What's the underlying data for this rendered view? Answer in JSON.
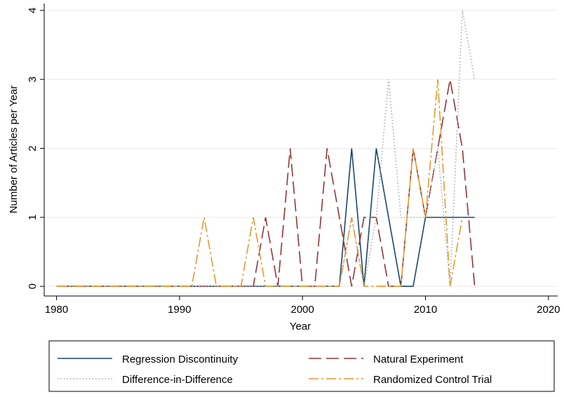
{
  "chart_data": {
    "type": "line",
    "x_label": "Year",
    "y_label": "Number of Articles per Year",
    "x": [
      1980,
      1981,
      1982,
      1983,
      1984,
      1985,
      1986,
      1987,
      1988,
      1989,
      1990,
      1991,
      1992,
      1993,
      1994,
      1995,
      1996,
      1997,
      1998,
      1999,
      2000,
      2001,
      2002,
      2003,
      2004,
      2005,
      2006,
      2007,
      2008,
      2009,
      2010,
      2011,
      2012,
      2013,
      2014
    ],
    "series": [
      {
        "name": "Regression Discontinuity",
        "color": "#1a476f",
        "dash": "none",
        "values": [
          0,
          0,
          0,
          0,
          0,
          0,
          0,
          0,
          0,
          0,
          0,
          0,
          0,
          0,
          0,
          0,
          0,
          0,
          0,
          0,
          0,
          0,
          0,
          0,
          2,
          0,
          2,
          1,
          0,
          0,
          1,
          1,
          1,
          1,
          1
        ]
      },
      {
        "name": "Natural Experiment",
        "color": "#90353b",
        "dash": "18 7",
        "values": [
          0,
          0,
          0,
          0,
          0,
          0,
          0,
          0,
          0,
          0,
          0,
          0,
          0,
          0,
          0,
          0,
          0,
          1,
          0,
          2,
          0,
          0,
          2,
          1,
          0,
          1,
          1,
          0,
          0,
          2,
          1,
          2,
          3,
          2,
          0
        ]
      },
      {
        "name": "Difference-in-Difference",
        "color": "#a8a8a8",
        "dash": "1.5 3",
        "values": [
          0,
          0,
          0,
          0,
          0,
          0,
          0,
          0,
          0,
          0,
          0,
          0,
          0,
          0,
          0,
          0,
          0,
          0,
          0,
          0,
          0,
          0,
          0,
          0,
          1,
          0,
          1,
          3,
          1,
          1,
          1,
          2,
          0,
          4,
          3
        ]
      },
      {
        "name": "Randomized Control Trial",
        "color": "#e39a2c",
        "dash": "14 4 3 4",
        "values": [
          0,
          0,
          0,
          0,
          0,
          0,
          0,
          0,
          0,
          0,
          0,
          0,
          1,
          0,
          0,
          0,
          1,
          0,
          0,
          0,
          0,
          0,
          0,
          0,
          1,
          0,
          0,
          0,
          0,
          2,
          1,
          3,
          0,
          1,
          null
        ]
      }
    ],
    "xlim": [
      1979,
      2020.75
    ],
    "xticks": [
      1980,
      1990,
      2000,
      2010,
      2020
    ],
    "ylim": [
      -0.14,
      4.1
    ],
    "yticks": [
      0,
      1,
      2,
      3,
      4
    ],
    "grid": true
  }
}
